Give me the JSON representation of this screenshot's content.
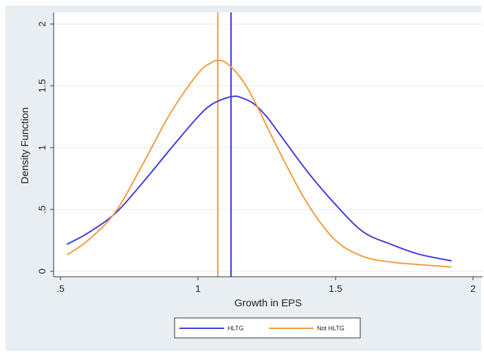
{
  "chart_data": {
    "type": "line",
    "title": "",
    "xlabel": "Growth in EPS",
    "ylabel": "Density Function",
    "xlim": [
      0.5,
      2.0
    ],
    "ylim": [
      0,
      2.0
    ],
    "xticks": [
      {
        "value": 0.5,
        "label": ".5"
      },
      {
        "value": 1.0,
        "label": "1"
      },
      {
        "value": 1.5,
        "label": "1.5"
      },
      {
        "value": 2.0,
        "label": "2"
      }
    ],
    "yticks": [
      {
        "value": 0.0,
        "label": "0"
      },
      {
        "value": 0.5,
        "label": ".5"
      },
      {
        "value": 1.0,
        "label": "1"
      },
      {
        "value": 1.5,
        "label": "1.5"
      },
      {
        "value": 2.0,
        "label": "2"
      }
    ],
    "grid": true,
    "legend_position": "bottom",
    "series": [
      {
        "name": "HLTG",
        "color": "#3a3ad6",
        "x": [
          0.525,
          0.6,
          0.7,
          0.8,
          0.9,
          1.0,
          1.05,
          1.1,
          1.13,
          1.15,
          1.2,
          1.25,
          1.3,
          1.4,
          1.5,
          1.6,
          1.7,
          1.8,
          1.92
        ],
        "y": [
          0.22,
          0.31,
          0.47,
          0.72,
          0.99,
          1.25,
          1.35,
          1.4,
          1.415,
          1.41,
          1.36,
          1.25,
          1.1,
          0.8,
          0.54,
          0.32,
          0.22,
          0.14,
          0.085
        ]
      },
      {
        "name": "Not HLTG",
        "color": "#f39b3c",
        "x": [
          0.525,
          0.6,
          0.7,
          0.8,
          0.9,
          1.0,
          1.05,
          1.07,
          1.1,
          1.15,
          1.2,
          1.3,
          1.4,
          1.5,
          1.6,
          1.7,
          1.8,
          1.92
        ],
        "y": [
          0.135,
          0.25,
          0.48,
          0.87,
          1.28,
          1.6,
          1.69,
          1.705,
          1.69,
          1.58,
          1.4,
          0.95,
          0.54,
          0.25,
          0.12,
          0.075,
          0.055,
          0.035
        ]
      }
    ],
    "vertical_lines": [
      {
        "x": 1.072,
        "color": "#f39b3c"
      },
      {
        "x": 1.12,
        "color": "#3a3ad6"
      }
    ]
  }
}
